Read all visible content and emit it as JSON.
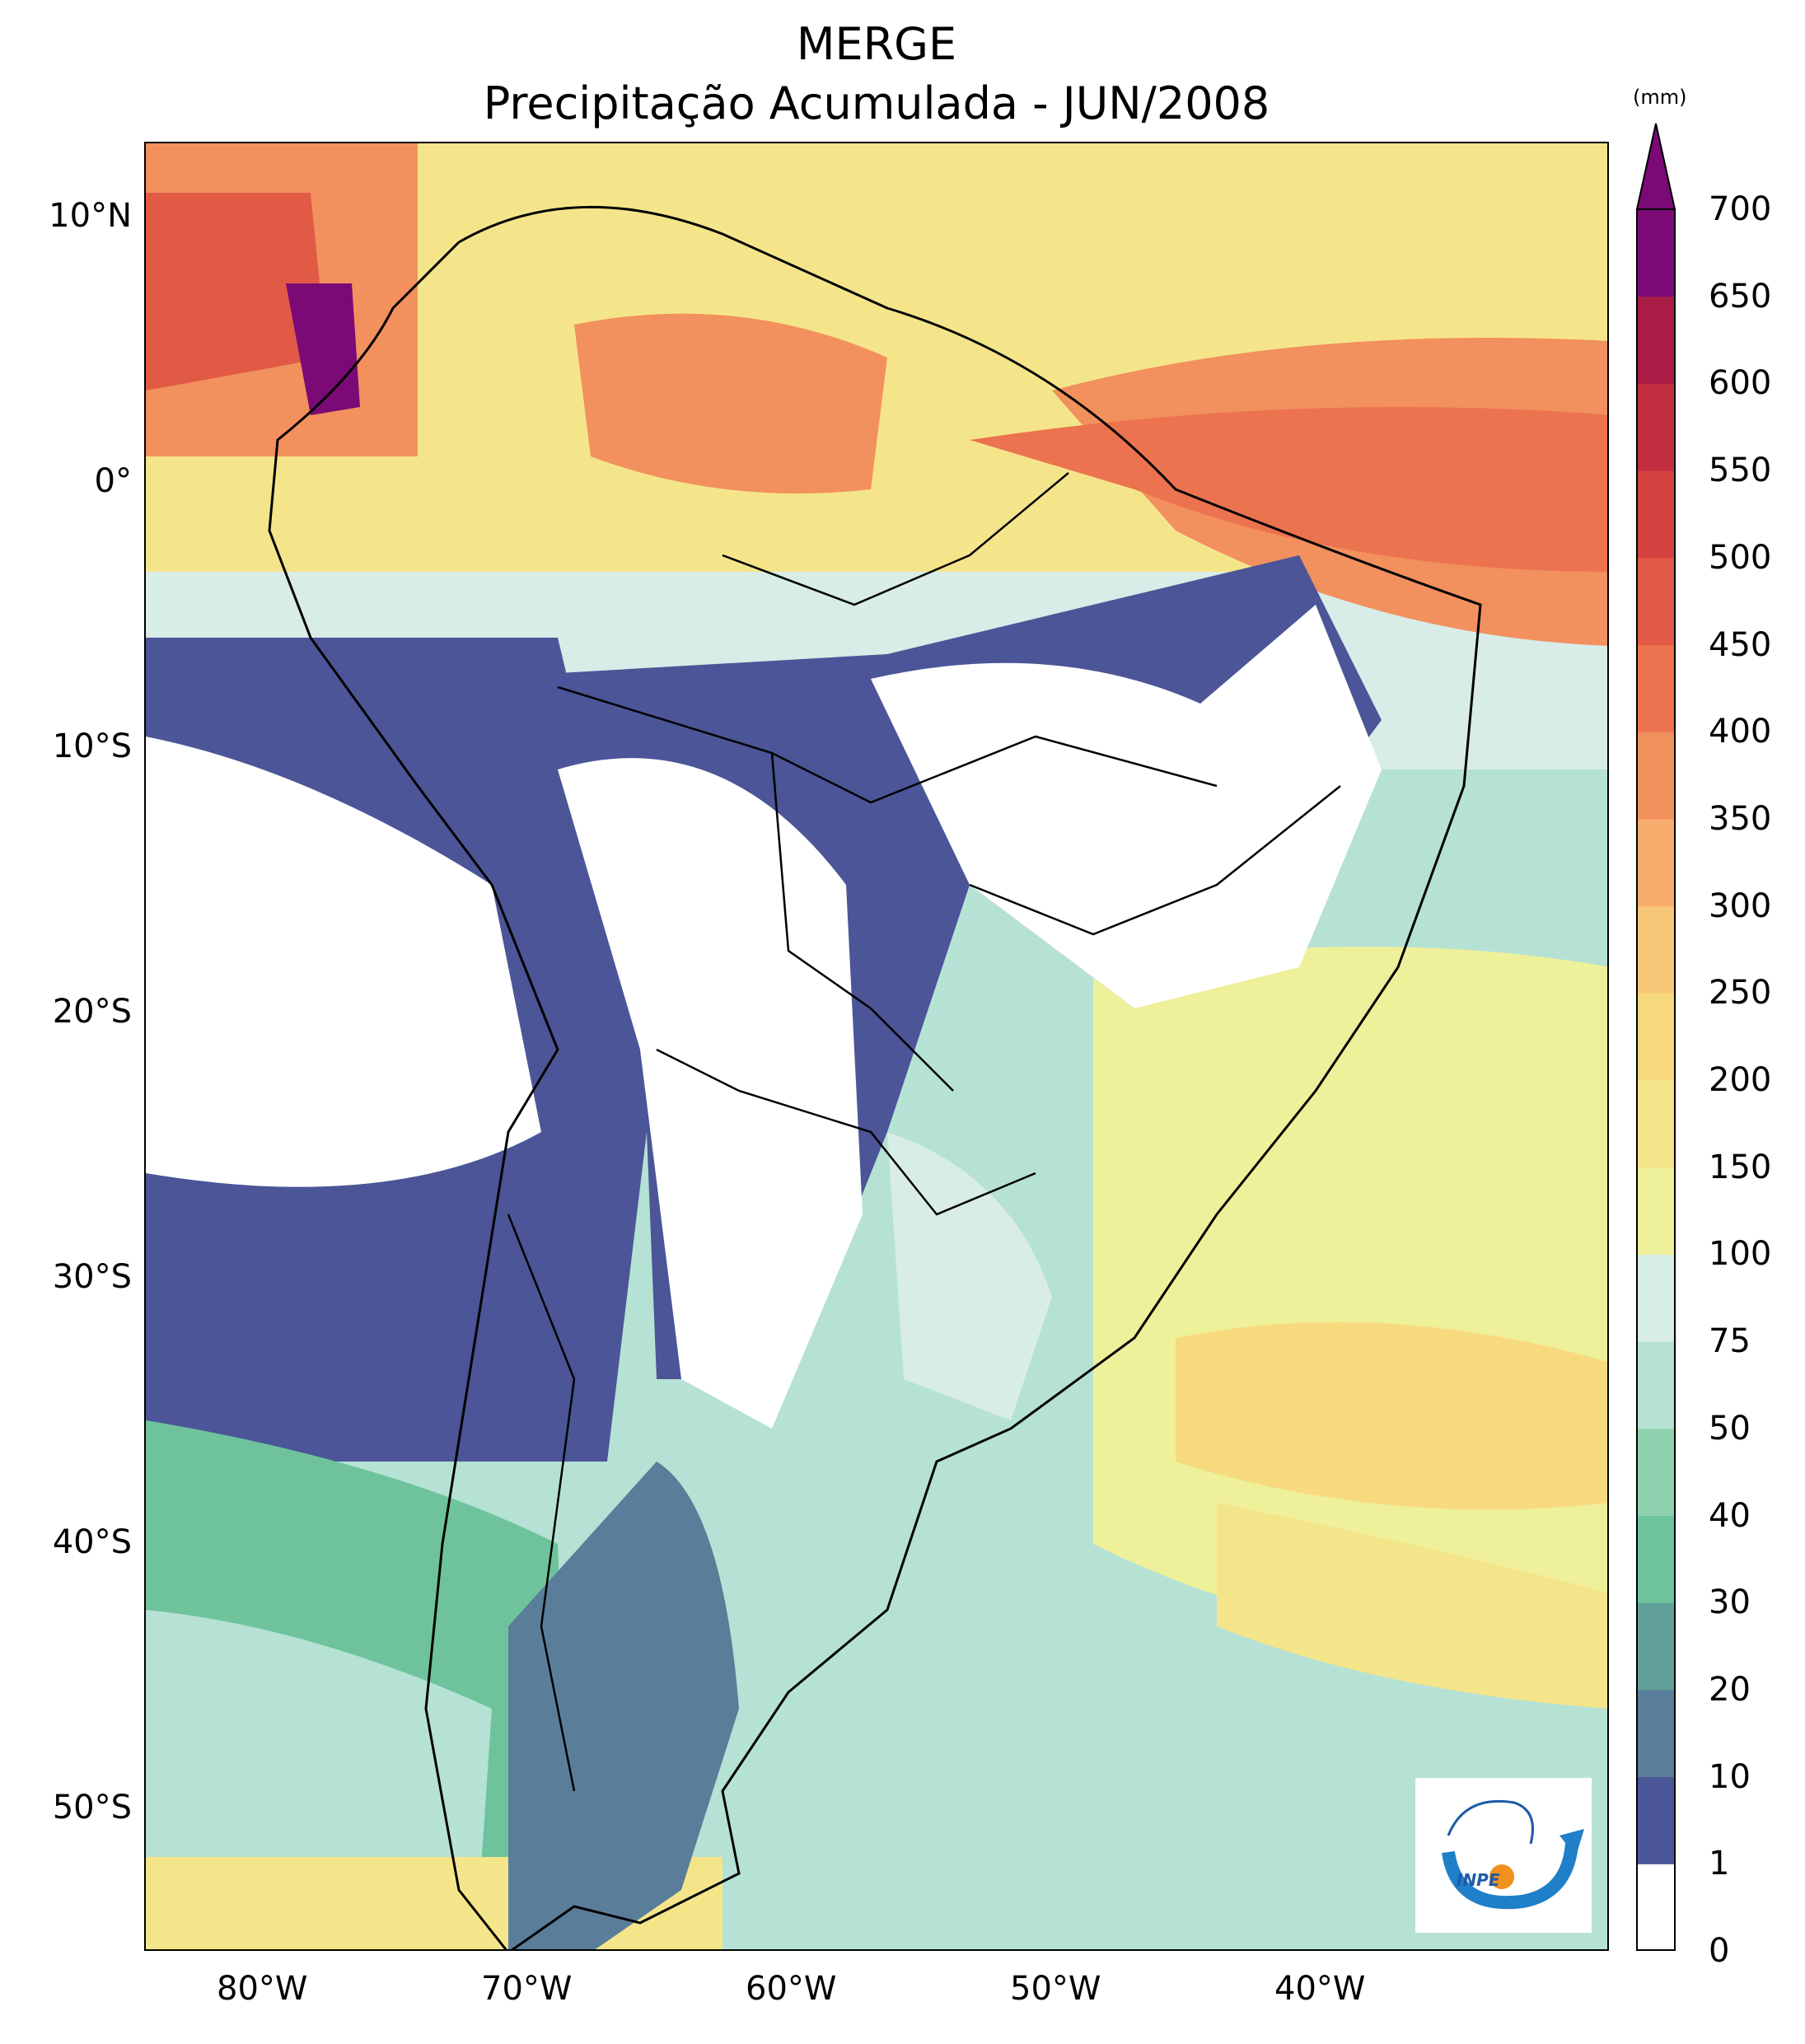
{
  "title": {
    "line1": "MERGE",
    "line2": "Precipitação Acumulada - JUN/2008"
  },
  "colorbar": {
    "units": "(mm)",
    "levels": [
      "0",
      "1",
      "10",
      "20",
      "30",
      "40",
      "50",
      "75",
      "100",
      "150",
      "200",
      "250",
      "300",
      "350",
      "400",
      "450",
      "500",
      "550",
      "600",
      "650",
      "700"
    ],
    "colors": [
      "#ffffff",
      "#4b5597",
      "#5a7d9a",
      "#62a09a",
      "#6ec39d",
      "#8fd1ae",
      "#b5e2d4",
      "#d8ece8",
      "#eef09a",
      "#f5e58a",
      "#f8da7e",
      "#f8c77a",
      "#f7ad6d",
      "#f2905e",
      "#ec734f",
      "#e15a46",
      "#d44240",
      "#c02e40",
      "#a81c45",
      "#7b0a76"
    ],
    "extend_color": "#7b0a76"
  },
  "axes": {
    "lon_ticks": [
      "80°W",
      "70°W",
      "60°W",
      "50°W",
      "40°W"
    ],
    "lat_ticks": [
      "10°N",
      "0°",
      "10°S",
      "20°S",
      "30°S",
      "40°S",
      "50°S"
    ]
  },
  "logo": {
    "text": "INPE"
  }
}
